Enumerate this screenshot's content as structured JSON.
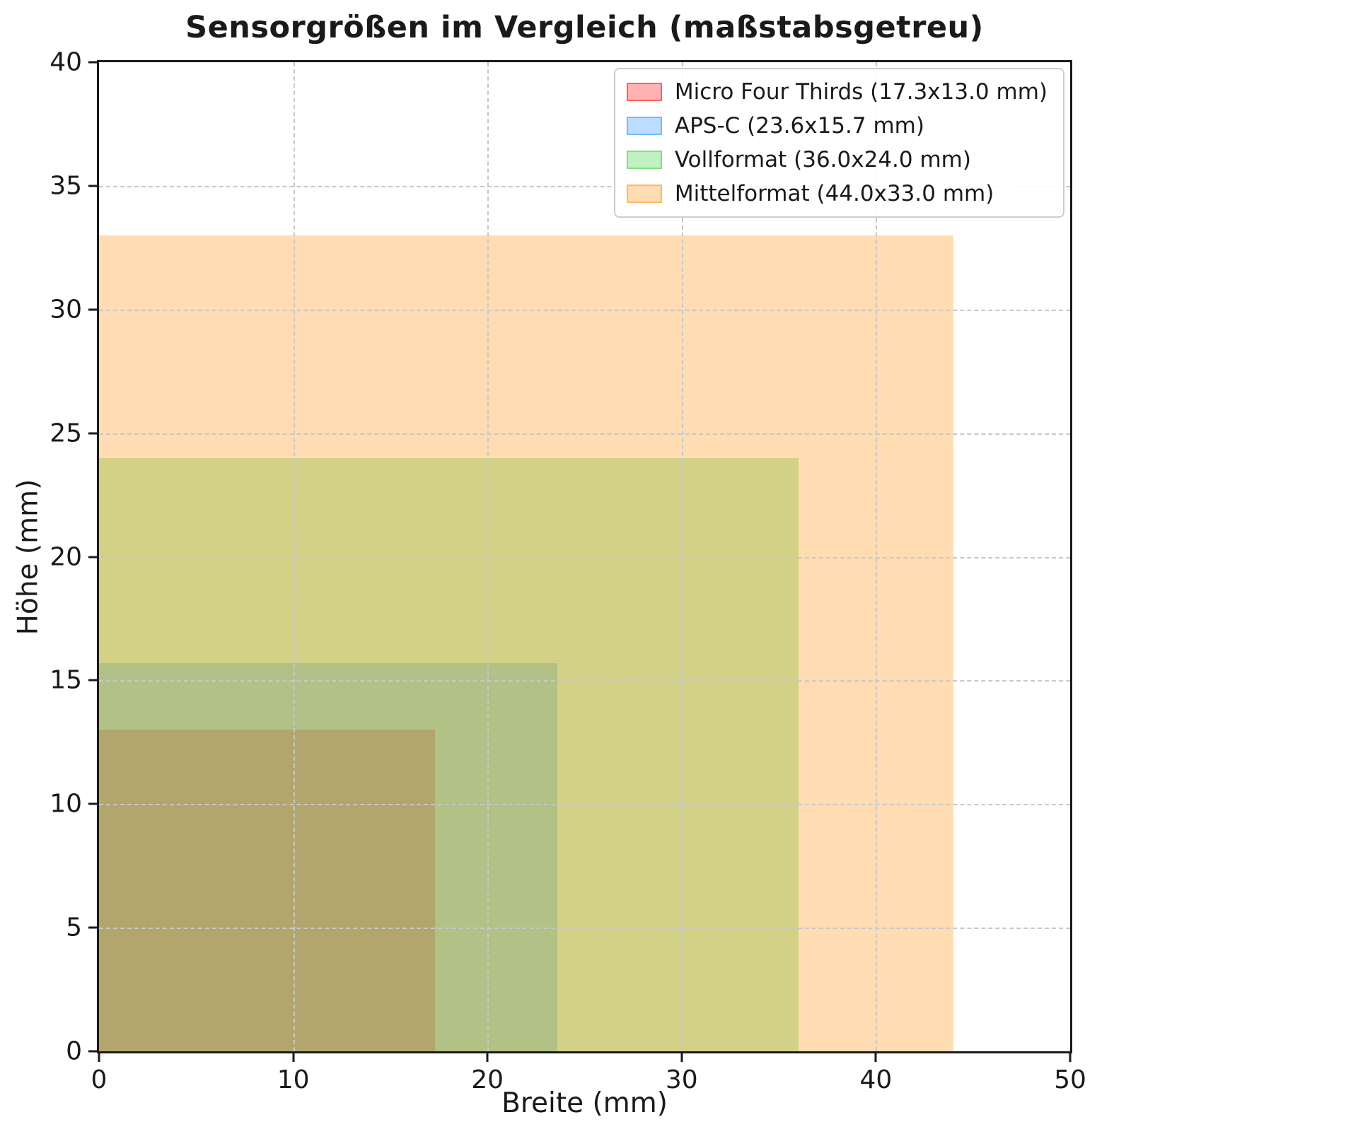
{
  "chart_data": {
    "type": "area",
    "title": "Sensorgrößen im Vergleich (maßstabsgetreu)",
    "xlabel": "Breite (mm)",
    "ylabel": "Höhe (mm)",
    "xlim": [
      0,
      50
    ],
    "ylim": [
      0,
      40
    ],
    "xticks": [
      0,
      10,
      20,
      30,
      40,
      50
    ],
    "yticks": [
      0,
      5,
      10,
      15,
      20,
      25,
      30,
      35,
      40
    ],
    "grid": true,
    "grid_style": "dashed",
    "legend_position": "upper right",
    "series": [
      {
        "name": "Micro Four Thirds",
        "label": "Micro Four Thirds (17.3x13.0 mm)",
        "width_mm": 17.3,
        "height_mm": 13.0,
        "color": "#ff0000",
        "alpha": 0.3
      },
      {
        "name": "APS-C",
        "label": "APS-C (23.6x15.7 mm)",
        "width_mm": 23.6,
        "height_mm": 15.7,
        "color": "#1e90ff",
        "alpha": 0.3
      },
      {
        "name": "Vollformat",
        "label": "Vollformat (36.0x24.0 mm)",
        "width_mm": 36.0,
        "height_mm": 24.0,
        "color": "#32cd32",
        "alpha": 0.3
      },
      {
        "name": "Mittelformat",
        "label": "Mittelformat (44.0x33.0 mm)",
        "width_mm": 44.0,
        "height_mm": 33.0,
        "color": "#ff8c00",
        "alpha": 0.3
      }
    ]
  }
}
